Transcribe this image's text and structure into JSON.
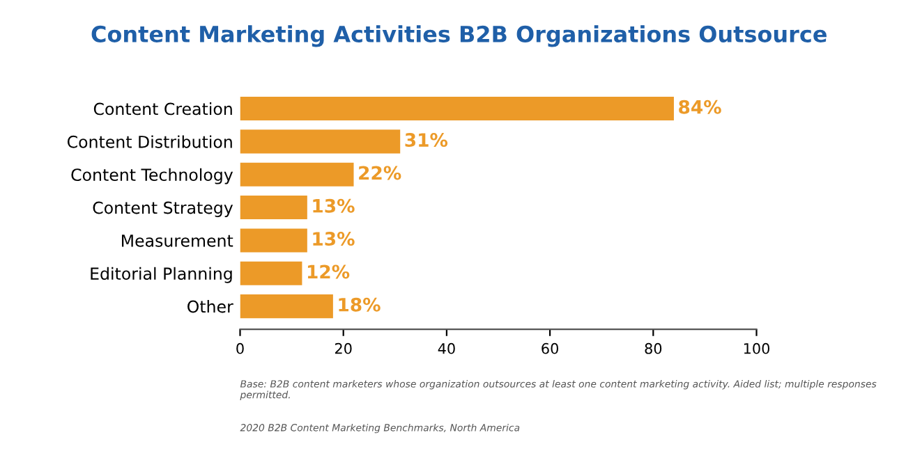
{
  "chart_data": {
    "type": "bar",
    "orientation": "horizontal",
    "title": "Content Marketing Activities B2B Organizations Outsource",
    "categories": [
      "Content Creation",
      "Content Distribution",
      "Content Technology",
      "Content Strategy",
      "Measurement",
      "Editorial Planning",
      "Other"
    ],
    "values": [
      84,
      31,
      22,
      13,
      13,
      12,
      18
    ],
    "color": "#ec9a28",
    "value_labels": [
      "84%",
      "31%",
      "22%",
      "13%",
      "13%",
      "12%",
      "18%"
    ],
    "xlim": [
      0,
      100
    ],
    "xticks": [
      0,
      20,
      40,
      60,
      80,
      100
    ],
    "grid": false,
    "annotations": [
      "Base: B2B content marketers whose organization outsources at least one content marketing activity. Aided list; multiple responses permitted.",
      "2020 B2B Content Marketing Benchmarks, North America"
    ]
  }
}
